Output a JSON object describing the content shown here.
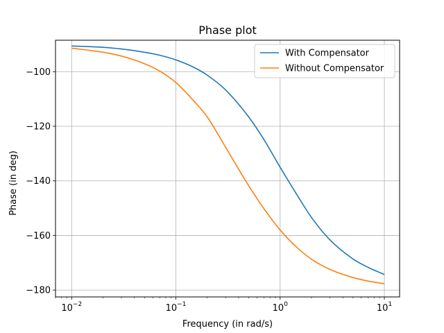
{
  "chart_data": {
    "type": "line",
    "title": "Phase plot",
    "xlabel": "Frequency (in rad/s)",
    "ylabel": "Phase (in deg)",
    "xscale": "log",
    "xlim": [
      0.007,
      14
    ],
    "ylim": [
      -182.5,
      -88.5
    ],
    "x_ticks": [
      {
        "value": 0.01,
        "base": "10",
        "exp": "−2"
      },
      {
        "value": 0.1,
        "base": "10",
        "exp": "−1"
      },
      {
        "value": 1,
        "base": "10",
        "exp": "0"
      },
      {
        "value": 10,
        "base": "10",
        "exp": "1"
      }
    ],
    "y_ticks": [
      {
        "value": -100,
        "label": "−100"
      },
      {
        "value": -120,
        "label": "−120"
      },
      {
        "value": -140,
        "label": "−140"
      },
      {
        "value": -160,
        "label": "−160"
      },
      {
        "value": -180,
        "label": "−180"
      }
    ],
    "grid": true,
    "legend": "top-right",
    "series": [
      {
        "name": "With Compensator",
        "color": "#1f77b4",
        "x": [
          0.01,
          0.02,
          0.03,
          0.05,
          0.07,
          0.1,
          0.15,
          0.2,
          0.3,
          0.5,
          0.7,
          1,
          1.5,
          2,
          3,
          5,
          7,
          10
        ],
        "y": [
          -90.6,
          -91.1,
          -91.7,
          -92.9,
          -94.0,
          -95.7,
          -98.5,
          -101.3,
          -106.7,
          -116.6,
          -124.9,
          -135.0,
          -146.0,
          -153.4,
          -161.6,
          -168.6,
          -171.7,
          -174.3
        ]
      },
      {
        "name": "Without Compensator",
        "color": "#ff7f0e",
        "x": [
          0.01,
          0.02,
          0.03,
          0.05,
          0.07,
          0.1,
          0.15,
          0.2,
          0.3,
          0.5,
          0.7,
          1,
          1.5,
          2,
          3,
          5,
          7,
          10
        ],
        "y": [
          -91.4,
          -92.9,
          -94.3,
          -97.1,
          -99.8,
          -104.0,
          -110.9,
          -116.6,
          -127.7,
          -141.8,
          -150.2,
          -158.0,
          -164.9,
          -168.7,
          -172.4,
          -175.4,
          -176.7,
          -177.7
        ]
      }
    ]
  }
}
